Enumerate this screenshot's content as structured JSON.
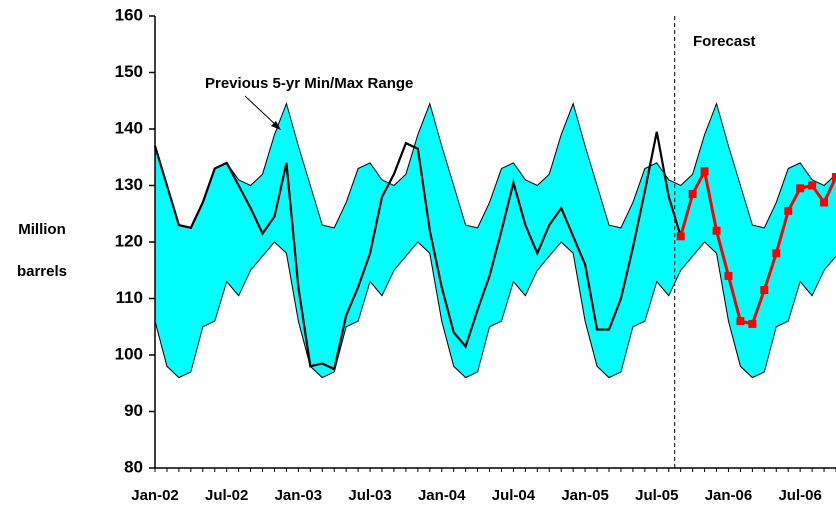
{
  "chart_data": {
    "type": "line",
    "ylabel": [
      "Million",
      "barrels"
    ],
    "annotations": [
      {
        "text": "Previous 5-yr Min/Max Range"
      },
      {
        "text": "Forecast"
      }
    ],
    "categories": [
      "Jan-02",
      null,
      null,
      null,
      null,
      null,
      "Jul-02",
      null,
      null,
      null,
      null,
      null,
      "Jan-03",
      null,
      null,
      null,
      null,
      null,
      "Jul-03",
      null,
      null,
      null,
      null,
      null,
      "Jan-04",
      null,
      null,
      null,
      null,
      null,
      "Jul-04",
      null,
      null,
      null,
      null,
      null,
      "Jan-05",
      null,
      null,
      null,
      null,
      null,
      "Jul-05",
      null,
      null,
      null,
      null,
      null,
      "Jan-06",
      null,
      null,
      null,
      null,
      null,
      "Jul-06",
      null,
      null,
      null
    ],
    "range": {
      "color": "#00ffff",
      "high": [
        137,
        130,
        123,
        122.5,
        127,
        133,
        134,
        131,
        130,
        132,
        139,
        144.5,
        137,
        130,
        123,
        122.5,
        127,
        133,
        134,
        131,
        130,
        132,
        139,
        144.5,
        137,
        130,
        123,
        122.5,
        127,
        133,
        134,
        131,
        130,
        132,
        139,
        144.5,
        137,
        130,
        123,
        122.5,
        127,
        133,
        134,
        131,
        130,
        132,
        139,
        144.5,
        137,
        130,
        123,
        122.5,
        127,
        133,
        134,
        131,
        130,
        132
      ],
      "low": [
        106,
        98,
        96,
        97,
        105,
        106,
        113,
        110.5,
        115,
        117.5,
        120,
        118,
        106,
        98,
        96,
        97,
        105,
        106,
        113,
        110.5,
        115,
        117.5,
        120,
        118,
        106,
        98,
        96,
        97,
        105,
        106,
        113,
        110.5,
        115,
        117.5,
        120,
        118,
        106,
        98,
        96,
        97,
        105,
        106,
        113,
        110.5,
        115,
        117.5,
        120,
        118,
        106,
        98,
        96,
        97,
        105,
        106,
        113,
        110.5,
        115,
        117.5
      ]
    },
    "series": [
      {
        "color": "#000000",
        "marker": false,
        "values": [
          137,
          130,
          123,
          122.5,
          127,
          133,
          134,
          130,
          126,
          121.5,
          124.5,
          134,
          112,
          98,
          98.5,
          97.5,
          107,
          112,
          118,
          128,
          132,
          137.5,
          136.5,
          122,
          112,
          104,
          101.5,
          108,
          114,
          122,
          130.5,
          123,
          118,
          123,
          126,
          121,
          116,
          104.5,
          104.5,
          110,
          119,
          129,
          139.5,
          128,
          121,
          null,
          null,
          null,
          null,
          null,
          null,
          null,
          null,
          null,
          null,
          null,
          null,
          null
        ]
      },
      {
        "color": "#ff0000",
        "marker": true,
        "values": [
          null,
          null,
          null,
          null,
          null,
          null,
          null,
          null,
          null,
          null,
          null,
          null,
          null,
          null,
          null,
          null,
          null,
          null,
          null,
          null,
          null,
          null,
          null,
          null,
          null,
          null,
          null,
          null,
          null,
          null,
          null,
          null,
          null,
          null,
          null,
          null,
          null,
          null,
          null,
          null,
          null,
          null,
          null,
          null,
          121,
          128.5,
          132.5,
          122,
          114,
          106,
          105.5,
          111.5,
          118,
          125.5,
          129.5,
          130,
          127,
          131.5
        ]
      }
    ],
    "ylim": [
      80,
      160
    ],
    "yticks": [
      80,
      90,
      100,
      110,
      120,
      130,
      140,
      150,
      160
    ]
  }
}
